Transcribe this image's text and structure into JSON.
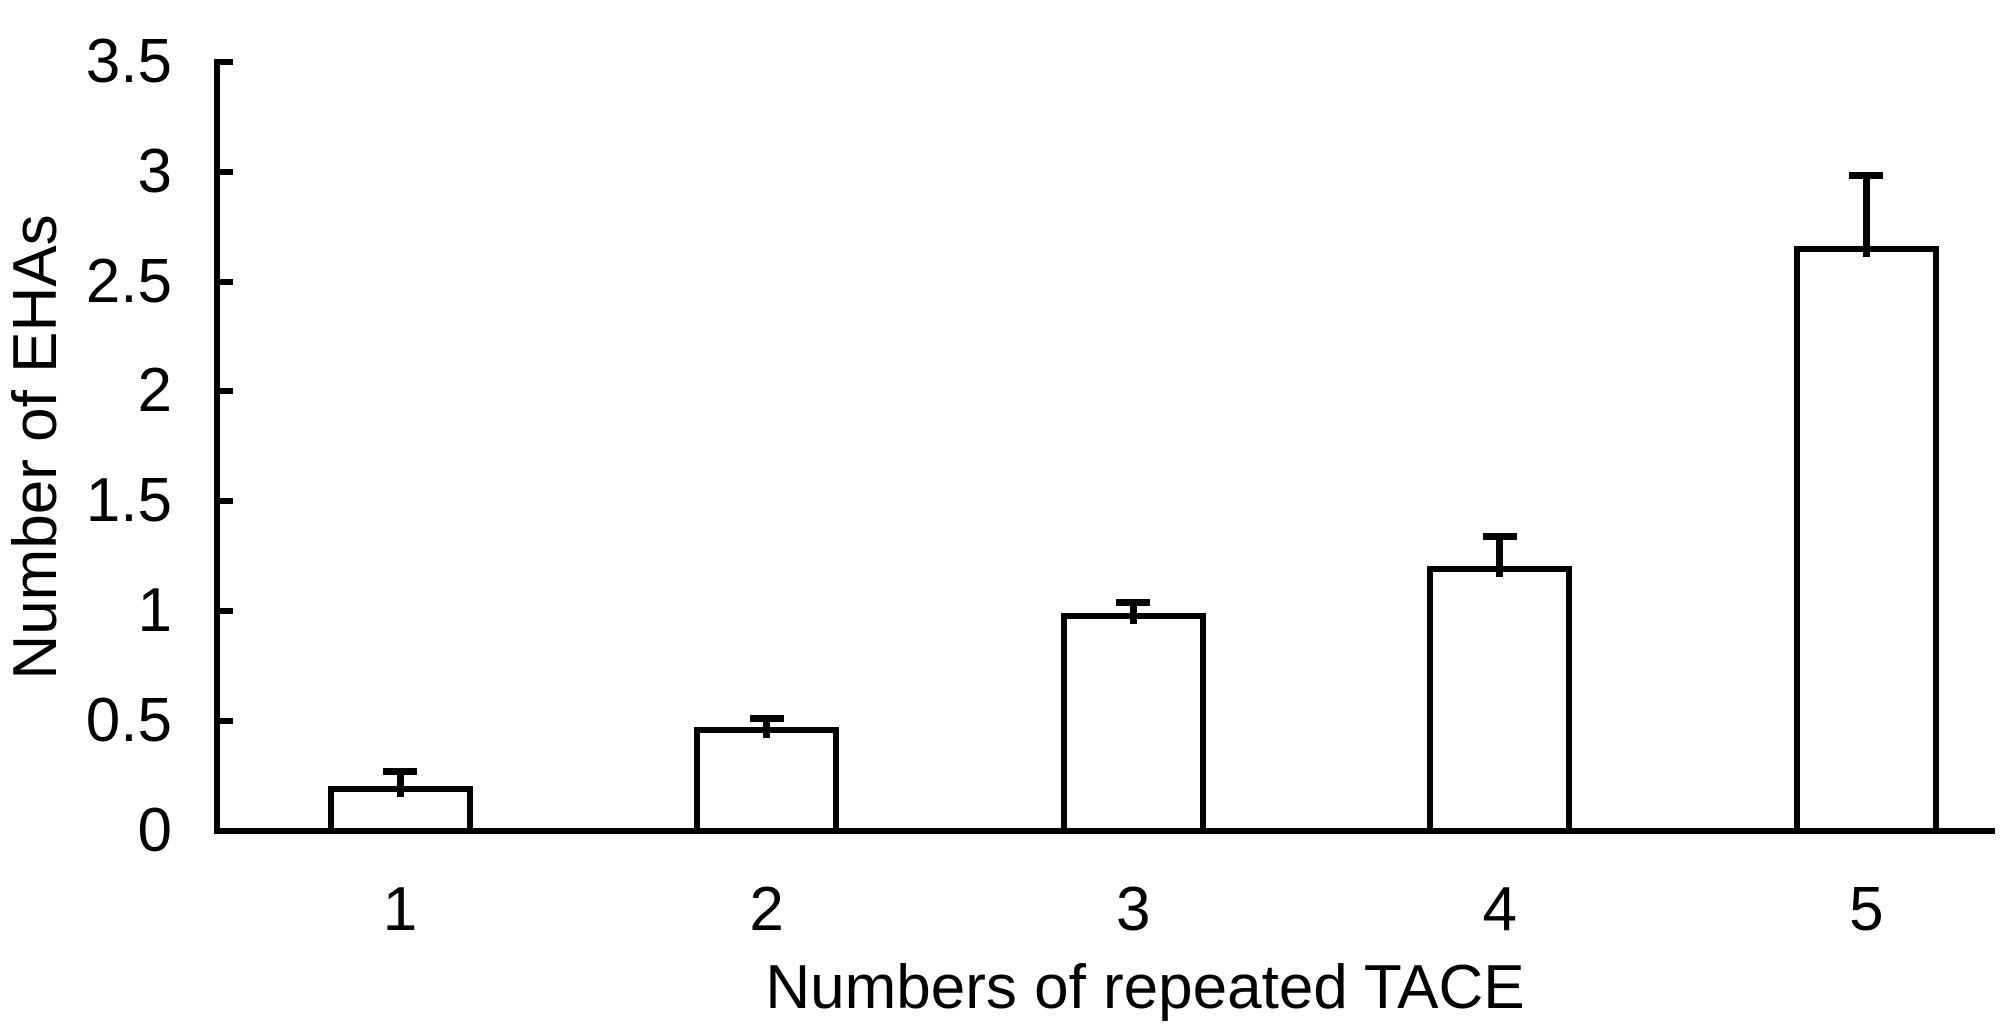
{
  "figure": {
    "background": "#ffffff",
    "line_color": "#000000"
  },
  "chart_data": {
    "type": "bar",
    "xlabel": "Numbers of repeated TACE",
    "ylabel": "Number of EHAs",
    "categories": [
      "1",
      "2",
      "3",
      "4",
      "5"
    ],
    "values": [
      0.19,
      0.46,
      0.98,
      1.19,
      2.65
    ],
    "errors_upper": [
      0.08,
      0.05,
      0.06,
      0.15,
      0.33
    ],
    "error_bar_tops": [
      0.27,
      0.51,
      1.04,
      1.34,
      2.98
    ],
    "ylim": [
      0,
      3.5
    ],
    "yticks": [
      0,
      0.5,
      1,
      1.5,
      2,
      2.5,
      3,
      3.5
    ],
    "ytick_labels": [
      "0",
      "0.5",
      "1",
      "1.5",
      "2",
      "2.5",
      "3",
      "3.5"
    ],
    "grid": false,
    "legend": "none",
    "error_bars": "upper-only",
    "bar_fill": "#ffffff",
    "bar_stroke": "#000000",
    "axis_color": "#000000",
    "text_color": "#000000"
  }
}
